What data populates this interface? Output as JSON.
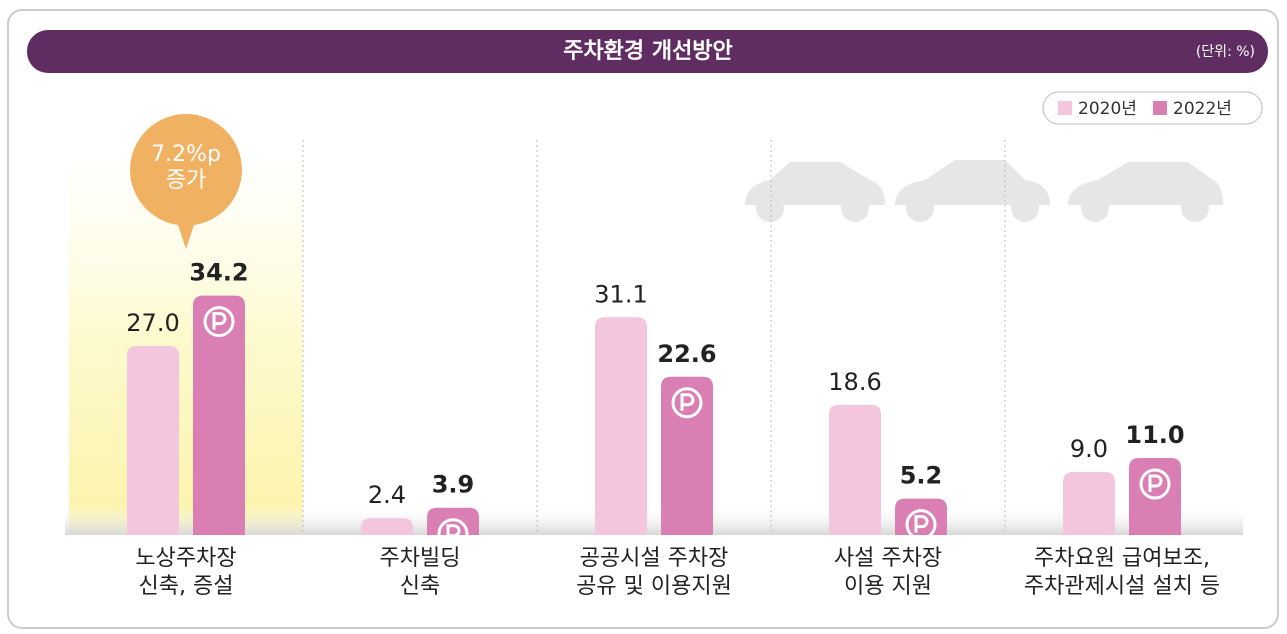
{
  "chart_data": {
    "type": "bar",
    "title": "주차환경 개선방안",
    "unit": "(단위: %)",
    "categories": [
      "노상주차장\n신축, 증설",
      "주차빌딩\n신축",
      "공공시설 주차장\n공유 및 이용지원",
      "사설 주차장\n이용 지원",
      "주차요원 급여보조,\n주차관제시설 설치 등"
    ],
    "series": [
      {
        "name": "2020년",
        "color": "#f3c6dd",
        "values": [
          27.0,
          2.4,
          31.1,
          18.6,
          9.0
        ],
        "value_labels": [
          "27.0",
          "2.4",
          "31.1",
          "18.6",
          "9.0"
        ]
      },
      {
        "name": "2022년",
        "color": "#d97fb4",
        "values": [
          34.2,
          3.9,
          22.6,
          5.2,
          11.0
        ],
        "value_labels": [
          "34.2",
          "3.9",
          "22.6",
          "5.2",
          "11.0"
        ]
      }
    ],
    "annotation": "7.2%p\n증가"
  }
}
